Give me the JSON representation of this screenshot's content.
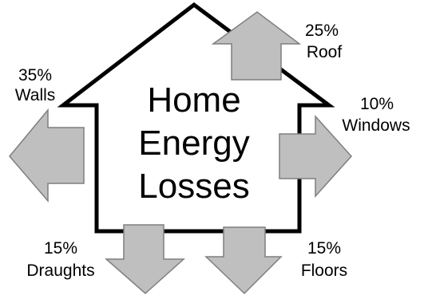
{
  "title_lines": [
    "Home",
    "Energy",
    "Losses"
  ],
  "losses": {
    "roof": {
      "percent": "25%",
      "label": "Roof"
    },
    "walls": {
      "percent": "35%",
      "label": "Walls"
    },
    "windows": {
      "percent": "10%",
      "label": "Windows"
    },
    "draughts": {
      "percent": "15%",
      "label": "Draughts"
    },
    "floors": {
      "percent": "15%",
      "label": "Floors"
    }
  },
  "colors": {
    "outline": "#000000",
    "arrow_fill": "#bfbfbf",
    "arrow_stroke": "#7f7f7f",
    "background": "#ffffff"
  }
}
